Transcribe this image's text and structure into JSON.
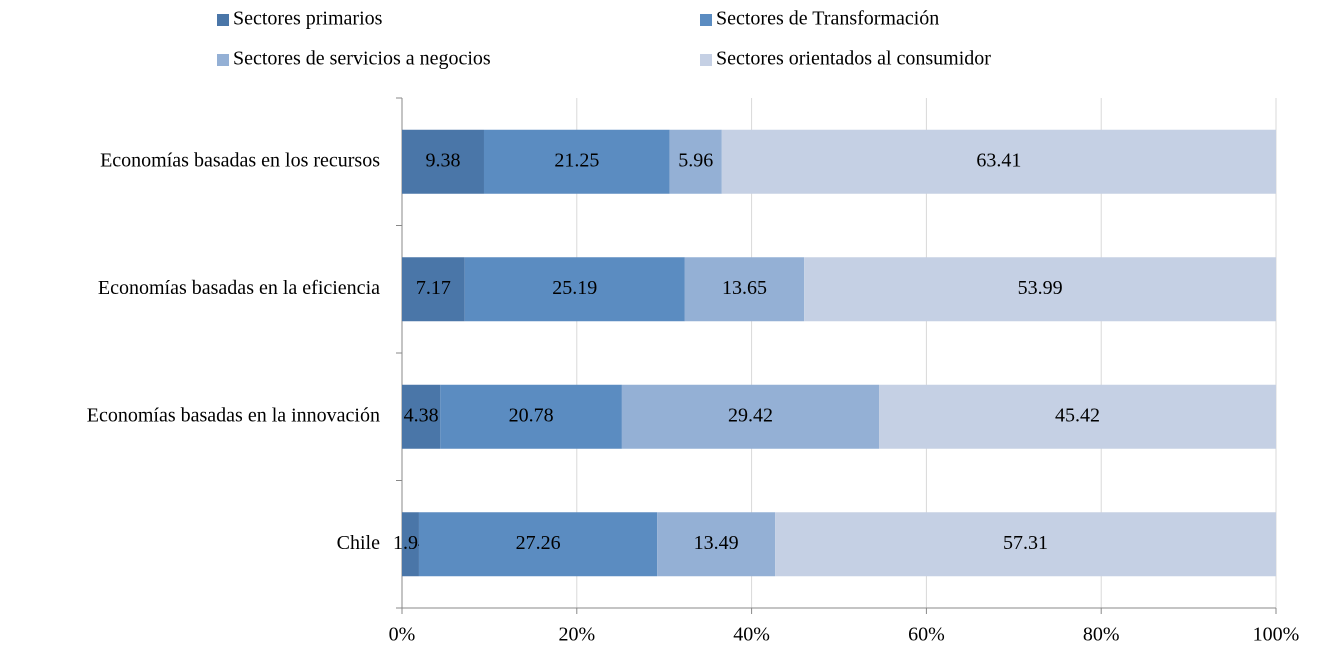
{
  "chart_data": {
    "type": "stacked_bar_horizontal",
    "categories": [
      "Economías basadas en los recursos",
      "Economías basadas en la eficiencia",
      "Economías basadas en la innovación",
      "Chile"
    ],
    "series": [
      {
        "name": "Sectores primarios",
        "color": "#4a76a8",
        "values": [
          9.38,
          7.17,
          4.38,
          1.94
        ]
      },
      {
        "name": "Sectores de Transformación",
        "color": "#5b8cc1",
        "values": [
          21.25,
          25.19,
          20.78,
          27.26
        ]
      },
      {
        "name": "Sectores de servicios a negocios",
        "color": "#94b0d5",
        "values": [
          5.96,
          13.65,
          29.42,
          13.49
        ]
      },
      {
        "name": "Sectores orientados al consumidor",
        "color": "#c5d0e4",
        "values": [
          63.41,
          53.99,
          45.42,
          57.31
        ]
      }
    ],
    "xlim": [
      0,
      100
    ],
    "xticks": [
      {
        "value": 0,
        "label": "0%"
      },
      {
        "value": 20,
        "label": "20%"
      },
      {
        "value": 40,
        "label": "40%"
      },
      {
        "value": 60,
        "label": "60%"
      },
      {
        "value": 80,
        "label": "80%"
      },
      {
        "value": 100,
        "label": "100%"
      }
    ],
    "grid": true,
    "legend": "top"
  }
}
